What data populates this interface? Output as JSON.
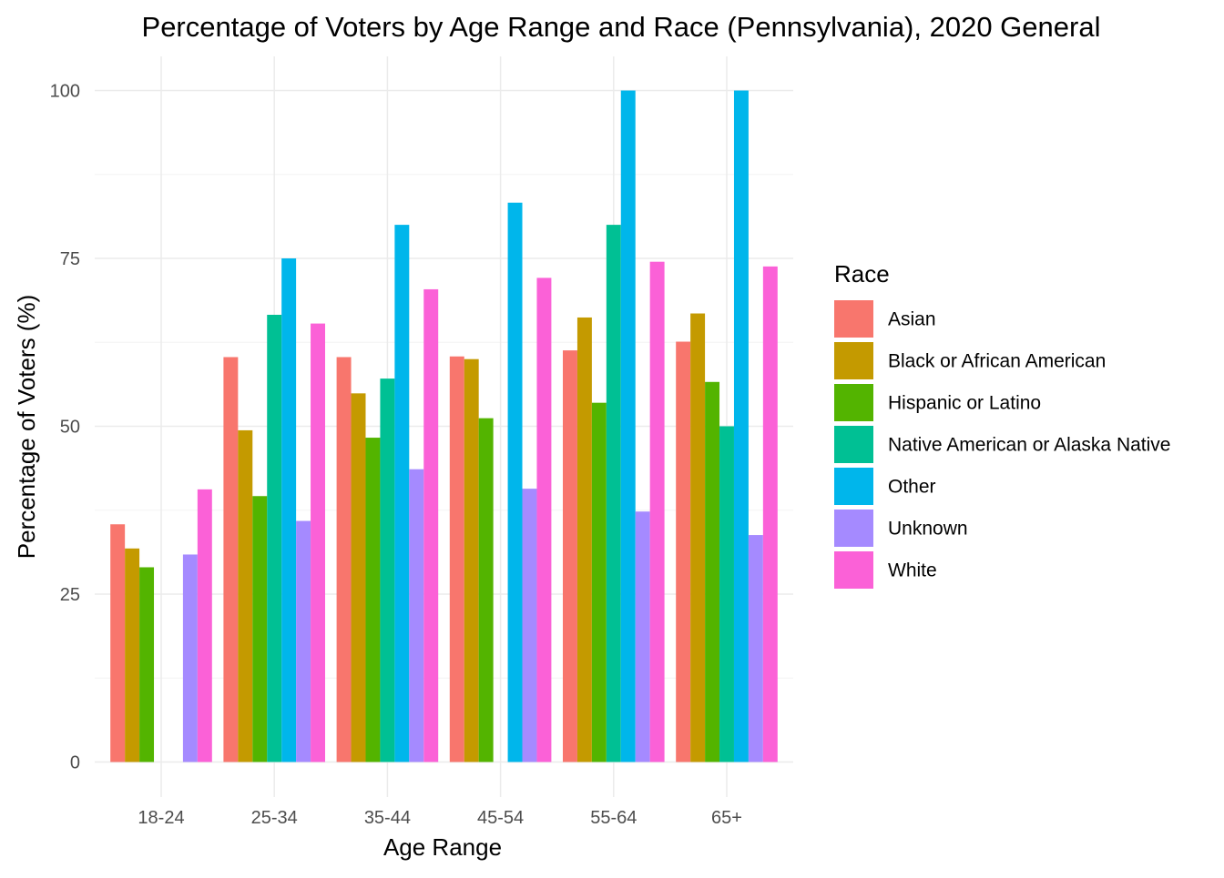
{
  "chart_data": {
    "type": "bar",
    "title": "Percentage of Voters by Age Range and Race (Pennsylvania), 2020 General",
    "xlabel": "Age Range",
    "ylabel": "Percentage of Voters (%)",
    "ylim": [
      0,
      105
    ],
    "yticks": [
      0,
      25,
      50,
      75,
      100
    ],
    "grid": true,
    "legend_title": "Race",
    "legend_position": "right",
    "categories": [
      "18-24",
      "25-34",
      "35-44",
      "45-54",
      "55-64",
      "65+"
    ],
    "series": [
      {
        "name": "Asian",
        "color": "#F8766D",
        "values": [
          35.4,
          60.3,
          60.3,
          60.4,
          61.3,
          62.6
        ]
      },
      {
        "name": "Black or African American",
        "color": "#C49A00",
        "values": [
          31.8,
          49.4,
          54.9,
          60.0,
          66.2,
          66.8
        ]
      },
      {
        "name": "Hispanic or Latino",
        "color": "#53B400",
        "values": [
          29.0,
          39.6,
          48.3,
          51.2,
          53.5,
          56.6
        ]
      },
      {
        "name": "Native American or Alaska Native",
        "color": "#00C094",
        "values": [
          null,
          66.6,
          57.1,
          null,
          80.0,
          50.0
        ]
      },
      {
        "name": "Other",
        "color": "#00B6EB",
        "values": [
          null,
          75.0,
          80.0,
          83.3,
          100.0,
          100.0
        ]
      },
      {
        "name": "Unknown",
        "color": "#A58AFF",
        "values": [
          30.9,
          35.9,
          43.6,
          40.7,
          37.3,
          33.8
        ]
      },
      {
        "name": "White",
        "color": "#FB61D7",
        "values": [
          40.6,
          65.3,
          70.4,
          72.1,
          74.5,
          73.8
        ]
      }
    ]
  }
}
